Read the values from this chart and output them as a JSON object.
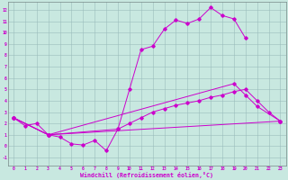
{
  "xlabel": "Windchill (Refroidissement éolien,°C)",
  "bg_color": "#c8e8e0",
  "line_color": "#cc00cc",
  "xlim": [
    -0.5,
    23.5
  ],
  "ylim": [
    -1.7,
    12.7
  ],
  "line1_x": [
    0,
    1,
    2,
    3,
    4,
    5,
    6,
    7,
    8,
    9,
    10,
    11,
    12,
    13,
    14,
    15,
    16,
    17,
    18,
    19,
    20
  ],
  "line1_y": [
    2.5,
    1.8,
    2.0,
    1.0,
    0.8,
    0.2,
    0.1,
    0.5,
    -0.4,
    1.5,
    5.0,
    8.5,
    8.8,
    10.3,
    11.1,
    10.8,
    11.2,
    12.2,
    11.5,
    11.2,
    9.5
  ],
  "line2_x": [
    0,
    3,
    19,
    20,
    21,
    23
  ],
  "line2_y": [
    2.5,
    1.0,
    5.5,
    4.5,
    3.5,
    2.2
  ],
  "line3_x": [
    0,
    3,
    9,
    10,
    11,
    12,
    13,
    14,
    15,
    16,
    17,
    18,
    19,
    20,
    21,
    22,
    23
  ],
  "line3_y": [
    2.5,
    1.0,
    1.5,
    2.0,
    2.5,
    3.0,
    3.3,
    3.6,
    3.8,
    4.0,
    4.3,
    4.5,
    4.8,
    5.0,
    4.0,
    3.0,
    2.2
  ],
  "line4_x": [
    0,
    3,
    23
  ],
  "line4_y": [
    2.5,
    1.0,
    2.2
  ]
}
